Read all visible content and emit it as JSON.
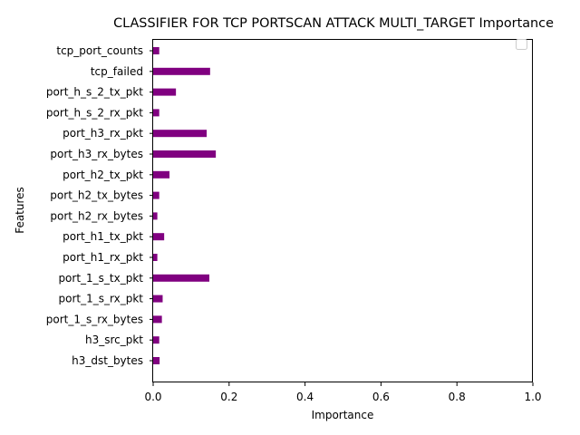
{
  "chart_data": {
    "type": "bar",
    "orientation": "horizontal",
    "title": "CLASSIFIER FOR TCP PORTSCAN ATTACK MULTI_TARGET Importance",
    "xlabel": "Importance",
    "ylabel": "Features",
    "xlim": [
      0,
      1.0
    ],
    "xticks": [
      "0.0",
      "0.2",
      "0.4",
      "0.6",
      "0.8",
      "1.0"
    ],
    "bar_color": "#800080",
    "grid": false,
    "legend": "top-right (empty)",
    "categories": [
      "h3_dst_bytes",
      "h3_src_pkt",
      "port_1_s_rx_bytes",
      "port_1_s_rx_pkt",
      "port_1_s_tx_pkt",
      "port_h1_rx_pkt",
      "port_h1_tx_pkt",
      "port_h2_rx_bytes",
      "port_h2_tx_bytes",
      "port_h2_tx_pkt",
      "port_h3_rx_bytes",
      "port_h3_rx_pkt",
      "port_h_s_2_rx_pkt",
      "port_h_s_2_tx_pkt",
      "tcp_failed",
      "tcp_port_counts"
    ],
    "values": [
      0.017,
      0.016,
      0.023,
      0.025,
      0.148,
      0.011,
      0.029,
      0.011,
      0.016,
      0.043,
      0.165,
      0.141,
      0.016,
      0.06,
      0.15,
      0.016
    ]
  }
}
